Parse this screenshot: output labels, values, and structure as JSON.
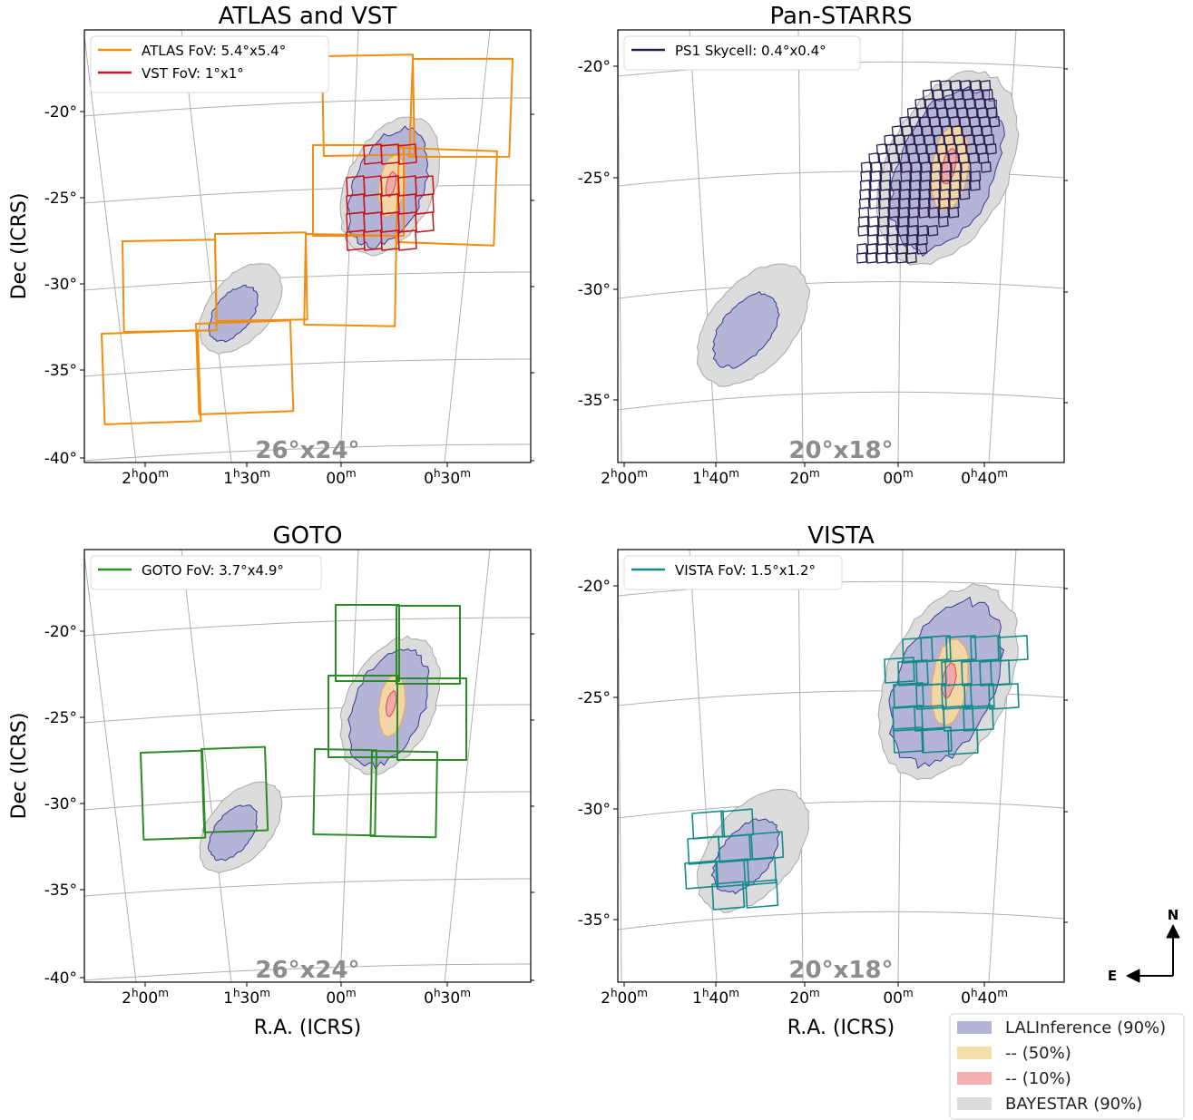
{
  "figure": {
    "compass": {
      "north": "N",
      "east": "E"
    },
    "legend": {
      "entries": [
        {
          "label": "LALInference (90%)",
          "color": "#b4b4d6"
        },
        {
          "label": "--       (50%)",
          "color": "#f5deaa"
        },
        {
          "label": "--       (10%)",
          "color": "#f4b0b0"
        },
        {
          "label": "BAYESTAR (90%)",
          "color": "#dcdcdc"
        }
      ]
    },
    "colors": {
      "lal90_fill": "#b4b4d6",
      "lal90_edge": "#3a3a9a",
      "lal50_fill": "#f2d7a6",
      "lal50_edge": "#e8a95a",
      "lal10_fill": "#f0a8a8",
      "lal10_edge": "#d84a4a",
      "bayestar_fill": "#dcdcdc",
      "bayestar_edge": "#a8a8a8",
      "grid": "#b0b0b0",
      "fov_label": "#8c8c8c"
    }
  },
  "chart_data": [
    {
      "type": "sky-map",
      "title": "ATLAS and VST",
      "xlabel": "",
      "ylabel": "Dec (ICRS)",
      "ytick_labels": [
        "-20°",
        "-25°",
        "-30°",
        "-35°",
        "-40°"
      ],
      "xtick_labels": [
        "2h00m",
        "1h30m",
        "00m",
        "0h30m"
      ],
      "fov_size_label": "26°x24°",
      "dec_range": [
        -44,
        -14
      ],
      "legend": [
        {
          "label": "ATLAS FoV: 5.4°x5.4°",
          "color": "#f28c0f"
        },
        {
          "label": "VST FoV: 1°x1°",
          "color": "#c8141e"
        }
      ]
    },
    {
      "type": "sky-map",
      "title": "Pan-STARRS",
      "xlabel": "",
      "ylabel": "",
      "ytick_labels": [
        "-20°",
        "-25°",
        "-30°",
        "-35°"
      ],
      "xtick_labels": [
        "2h00m",
        "1h40m",
        "20m",
        "00m",
        "0h40m"
      ],
      "fov_size_label": "20°x18°",
      "dec_range": [
        -38,
        -18
      ],
      "legend": [
        {
          "label": "PS1 Skycell: 0.4°x0.4°",
          "color": "#2a1f4a"
        }
      ]
    },
    {
      "type": "sky-map",
      "title": "GOTO",
      "xlabel": "R.A. (ICRS)",
      "ylabel": "Dec (ICRS)",
      "ytick_labels": [
        "-20°",
        "-25°",
        "-30°",
        "-35°",
        "-40°"
      ],
      "xtick_labels": [
        "2h00m",
        "1h30m",
        "00m",
        "0h30m"
      ],
      "fov_size_label": "26°x24°",
      "dec_range": [
        -44,
        -14
      ],
      "legend": [
        {
          "label": "GOTO FoV:  3.7°x4.9°",
          "color": "#2b8c25"
        }
      ]
    },
    {
      "type": "sky-map",
      "title": "VISTA",
      "xlabel": "R.A. (ICRS)",
      "ylabel": "",
      "ytick_labels": [
        "-20°",
        "-25°",
        "-30°",
        "-35°"
      ],
      "xtick_labels": [
        "2h00m",
        "1h40m",
        "20m",
        "00m",
        "0h40m"
      ],
      "fov_size_label": "20°x18°",
      "dec_range": [
        -38,
        -18
      ],
      "legend": [
        {
          "label": "VISTA FoV: 1.5°x1.2°",
          "color": "#138a8a"
        }
      ]
    }
  ]
}
